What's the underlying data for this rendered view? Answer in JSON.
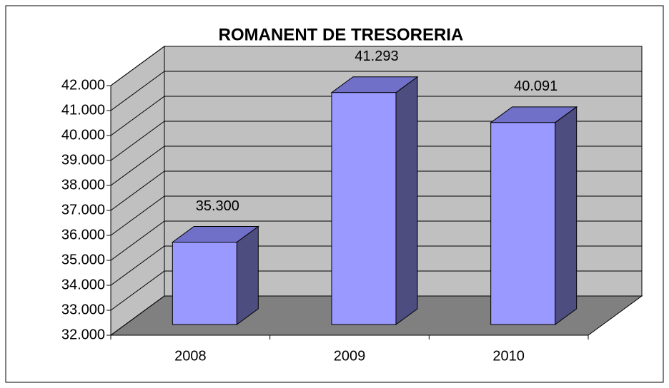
{
  "chart_data": {
    "type": "bar3d",
    "title": "ROMANENT DE TRESORERIA",
    "categories": [
      "2008",
      "2009",
      "2010"
    ],
    "values": [
      35300,
      41293,
      40091
    ],
    "value_labels": [
      "35.300",
      "41.293",
      "40.091"
    ],
    "color": "#9999ff",
    "ylim": [
      32000,
      42000
    ],
    "yticks": [
      {
        "value": 32000,
        "label": "32.000"
      },
      {
        "value": 33000,
        "label": "33.000"
      },
      {
        "value": 34000,
        "label": "34.000"
      },
      {
        "value": 35000,
        "label": "35.000"
      },
      {
        "value": 36000,
        "label": "36.000"
      },
      {
        "value": 37000,
        "label": "37.000"
      },
      {
        "value": 38000,
        "label": "38.000"
      },
      {
        "value": 39000,
        "label": "39.000"
      },
      {
        "value": 40000,
        "label": "40.000"
      },
      {
        "value": 41000,
        "label": "41.000"
      },
      {
        "value": 42000,
        "label": "42.000"
      }
    ],
    "grid": true
  }
}
